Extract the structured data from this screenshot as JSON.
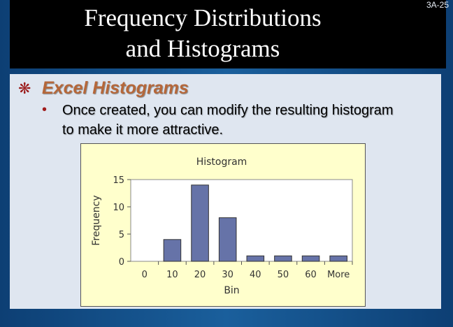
{
  "slide": {
    "title_line1": "Frequency Distributions",
    "title_line2": "and Histograms",
    "slide_number": "3A-25",
    "bullet_icon": "snowflake-bullet-icon",
    "heading": "Excel Histograms",
    "sub_bullet": "•",
    "body": "Once created, you can modify the resulting histogram to make it more attractive."
  },
  "colors": {
    "bar": "#6673a8",
    "heading": "#b5673a",
    "chart_bg": "#ffffcc"
  },
  "chart_data": {
    "type": "bar",
    "title": "Histogram",
    "xlabel": "Bin",
    "ylabel": "Frequency",
    "categories": [
      "0",
      "10",
      "20",
      "30",
      "40",
      "50",
      "60",
      "More"
    ],
    "values": [
      0,
      4,
      14,
      8,
      1,
      1,
      1,
      1
    ],
    "ylim": [
      0,
      15
    ],
    "yticks": [
      0,
      5,
      10,
      15
    ],
    "grid": false,
    "legend": "none"
  }
}
